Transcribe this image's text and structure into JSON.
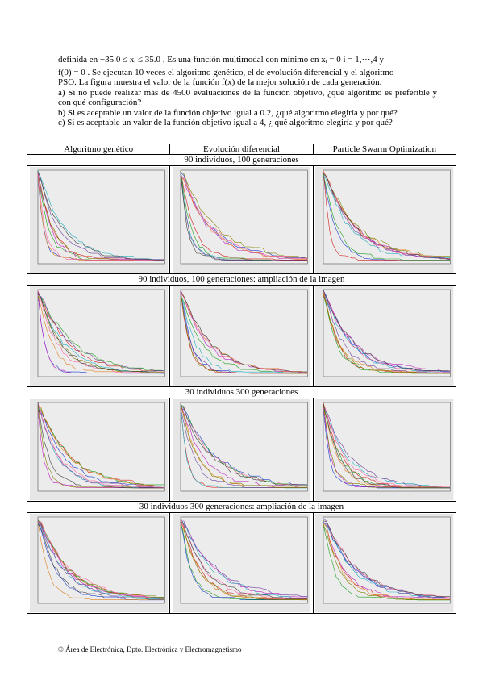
{
  "paragraph": {
    "lines": [
      "definida en  −35.0 ≤ xᵢ ≤ 35.0 . Es una función multimodal con mínimo  en xᵢ = 0   i = 1,⋯,4  y",
      "f(0) = 0 . Se ejecutan 10 veces el algoritmo genético, el de evolución diferencial y el algoritmo",
      "PSO. La figura muestra el valor de la función  f(x) de la mejor solución de cada generación."
    ]
  },
  "questions": [
    "a) Si no puede realizar más de 4500 evaluaciones de la función objetivo, ¿qué algoritmo es preferible y con qué configuración?",
    "b) Si es aceptable un valor de la función objetivo igual a 0.2, ¿qué algoritmo elegiría y por qué?",
    "c) Si es aceptable un valor de la función objetivo igual a 4, ¿ qué algoritmo elegiría y por qué?"
  ],
  "table": {
    "headers": [
      "Algoritmo genético",
      "Evolución diferencial",
      "Particle Swarm Optimization"
    ],
    "sections": [
      {
        "caption": "90 individuos, 100 generaciones"
      },
      {
        "caption": "90 individuos, 100 generaciones: ampliación de la imagen"
      },
      {
        "caption": "30 individuos 300 generaciones"
      },
      {
        "caption": "30 individuos 300 generaciones: ampliación de la imagen"
      }
    ]
  },
  "footer": "© Área de Electrónica, Dpto. Electrónica y Electromagnetismo"
}
